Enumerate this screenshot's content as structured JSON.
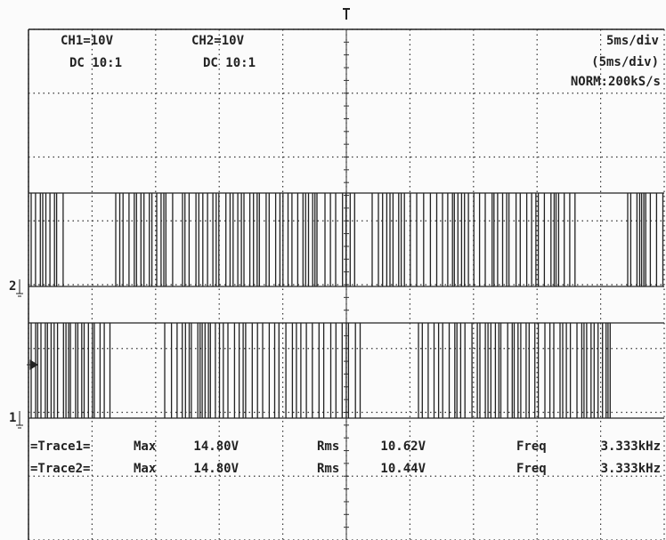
{
  "header": {
    "ch1": {
      "scale": "CH1=10V",
      "coupling": "DC 10:1"
    },
    "ch2": {
      "scale": "CH2=10V",
      "coupling": "DC 10:1"
    },
    "timebase": {
      "main": "5ms/div",
      "secondary": "(5ms/div)",
      "mode": "NORM:200kS/s"
    }
  },
  "markers": {
    "ch2": "2",
    "ch1": "1"
  },
  "measurements": [
    {
      "trace": "=Trace1=",
      "max_label": "Max",
      "max": "14.80V",
      "rms_label": "Rms",
      "rms": "10.62V",
      "freq_label": "Freq",
      "freq": "3.333kHz"
    },
    {
      "trace": "=Trace2=",
      "max_label": "Max",
      "max": "14.80V",
      "rms_label": "Rms",
      "rms": "10.44V",
      "freq_label": "Freq",
      "freq": "3.333kHz"
    }
  ]
}
